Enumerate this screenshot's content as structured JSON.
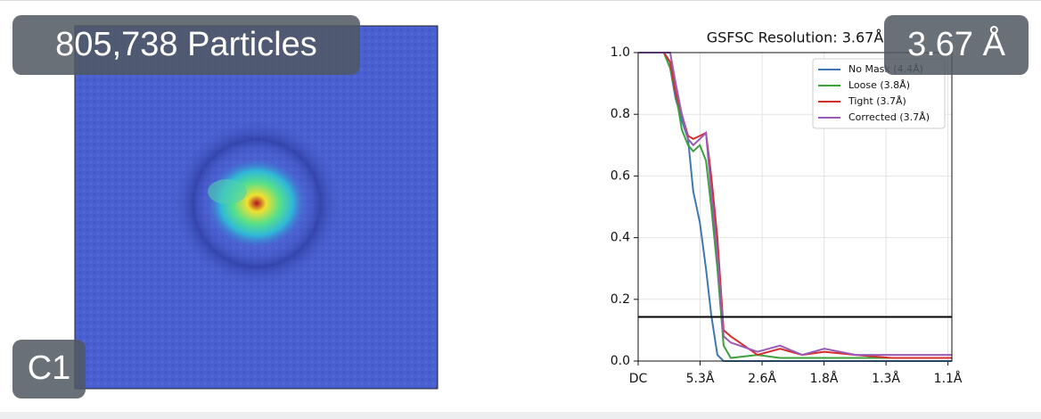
{
  "badges": {
    "particles": "805,738 Particles",
    "symmetry": "C1",
    "resolution": "3.67 Å"
  },
  "chart_data": {
    "type": "line",
    "title": "GSFSC Resolution: 3.67Å",
    "x": [
      0,
      0.079,
      0.098,
      0.115,
      0.134,
      0.153,
      0.169,
      0.189,
      0.208,
      0.224,
      0.243,
      0.262,
      0.284,
      0.366,
      0.435,
      0.503,
      0.571,
      0.667,
      0.776,
      0.962
    ],
    "series": [
      {
        "name": "No Mask (4.4Å)",
        "color": "#3f77b4",
        "values": [
          1,
          1,
          0.95,
          0.85,
          0.78,
          0.72,
          0.55,
          0.45,
          0.3,
          0.15,
          0.02,
          0,
          0,
          0,
          0,
          0,
          0,
          0,
          0,
          0
        ]
      },
      {
        "name": "Loose (3.8Å)",
        "color": "#3ca13c",
        "values": [
          1,
          1,
          0.95,
          0.87,
          0.75,
          0.7,
          0.68,
          0.7,
          0.65,
          0.5,
          0.3,
          0.05,
          0.01,
          0.02,
          0.01,
          0.01,
          0.01,
          0.01,
          0.01,
          0.01
        ]
      },
      {
        "name": "Tight (3.7Å)",
        "color": "#d62e2b",
        "values": [
          1,
          1,
          0.97,
          0.87,
          0.8,
          0.73,
          0.72,
          0.73,
          0.74,
          0.6,
          0.4,
          0.1,
          0.08,
          0.02,
          0.04,
          0.02,
          0.03,
          0.02,
          0.01,
          0.01
        ]
      },
      {
        "name": "Corrected (3.7Å)",
        "color": "#9a5ab8",
        "values": [
          1,
          1,
          1,
          0.9,
          0.8,
          0.72,
          0.7,
          0.72,
          0.74,
          0.55,
          0.35,
          0.08,
          0.06,
          0.03,
          0.05,
          0.02,
          0.04,
          0.02,
          0.02,
          0.02
        ]
      }
    ],
    "xlim": [
      0,
      0.962
    ],
    "ylim": [
      0,
      1
    ],
    "xticks": [
      {
        "value": 0,
        "label": "DC"
      },
      {
        "value": 0.19,
        "label": "5.3Å"
      },
      {
        "value": 0.38,
        "label": "2.6Å"
      },
      {
        "value": 0.57,
        "label": "1.8Å"
      },
      {
        "value": 0.76,
        "label": "1.3Å"
      },
      {
        "value": 0.95,
        "label": "1.1Å"
      }
    ],
    "yticks": [
      {
        "value": 0,
        "label": "0.0"
      },
      {
        "value": 0.2,
        "label": "0.2"
      },
      {
        "value": 0.4,
        "label": "0.4"
      },
      {
        "value": 0.6,
        "label": "0.6"
      },
      {
        "value": 0.8,
        "label": "0.8"
      },
      {
        "value": 1,
        "label": "1.0"
      }
    ],
    "threshold": 0.143,
    "threshold_color": "#000000",
    "grid": true,
    "legend": "upper right"
  }
}
